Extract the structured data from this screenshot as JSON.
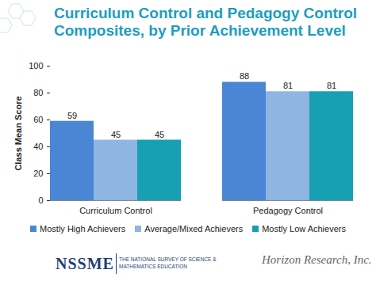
{
  "chart_data": {
    "type": "bar",
    "title": "Curriculum Control and Pedagogy Control Composites, by Prior Achievement Level",
    "y_label": "Class Mean Score",
    "categories": [
      "Curriculum Control",
      "Pedagogy Control"
    ],
    "series": [
      {
        "name": "Mostly High Achievers",
        "color": "#4a86d4",
        "values": [
          59,
          88
        ]
      },
      {
        "name": "Average/Mixed Achievers",
        "color": "#8fb5e3",
        "values": [
          45,
          81
        ]
      },
      {
        "name": "Mostly Low Achievers",
        "color": "#17a0b4",
        "values": [
          45,
          81
        ]
      }
    ],
    "ylim": [
      0,
      100
    ],
    "yticks": [
      0,
      20,
      40,
      60,
      80,
      100
    ],
    "grid": false,
    "legend": "bottom",
    "data_labels": true
  },
  "logos": {
    "left": "NSSME",
    "left_subtitle": "THE NATIONAL SURVEY OF SCIENCE & MATHEMATICS EDUCATION",
    "right": "Horizon Research, Inc."
  }
}
